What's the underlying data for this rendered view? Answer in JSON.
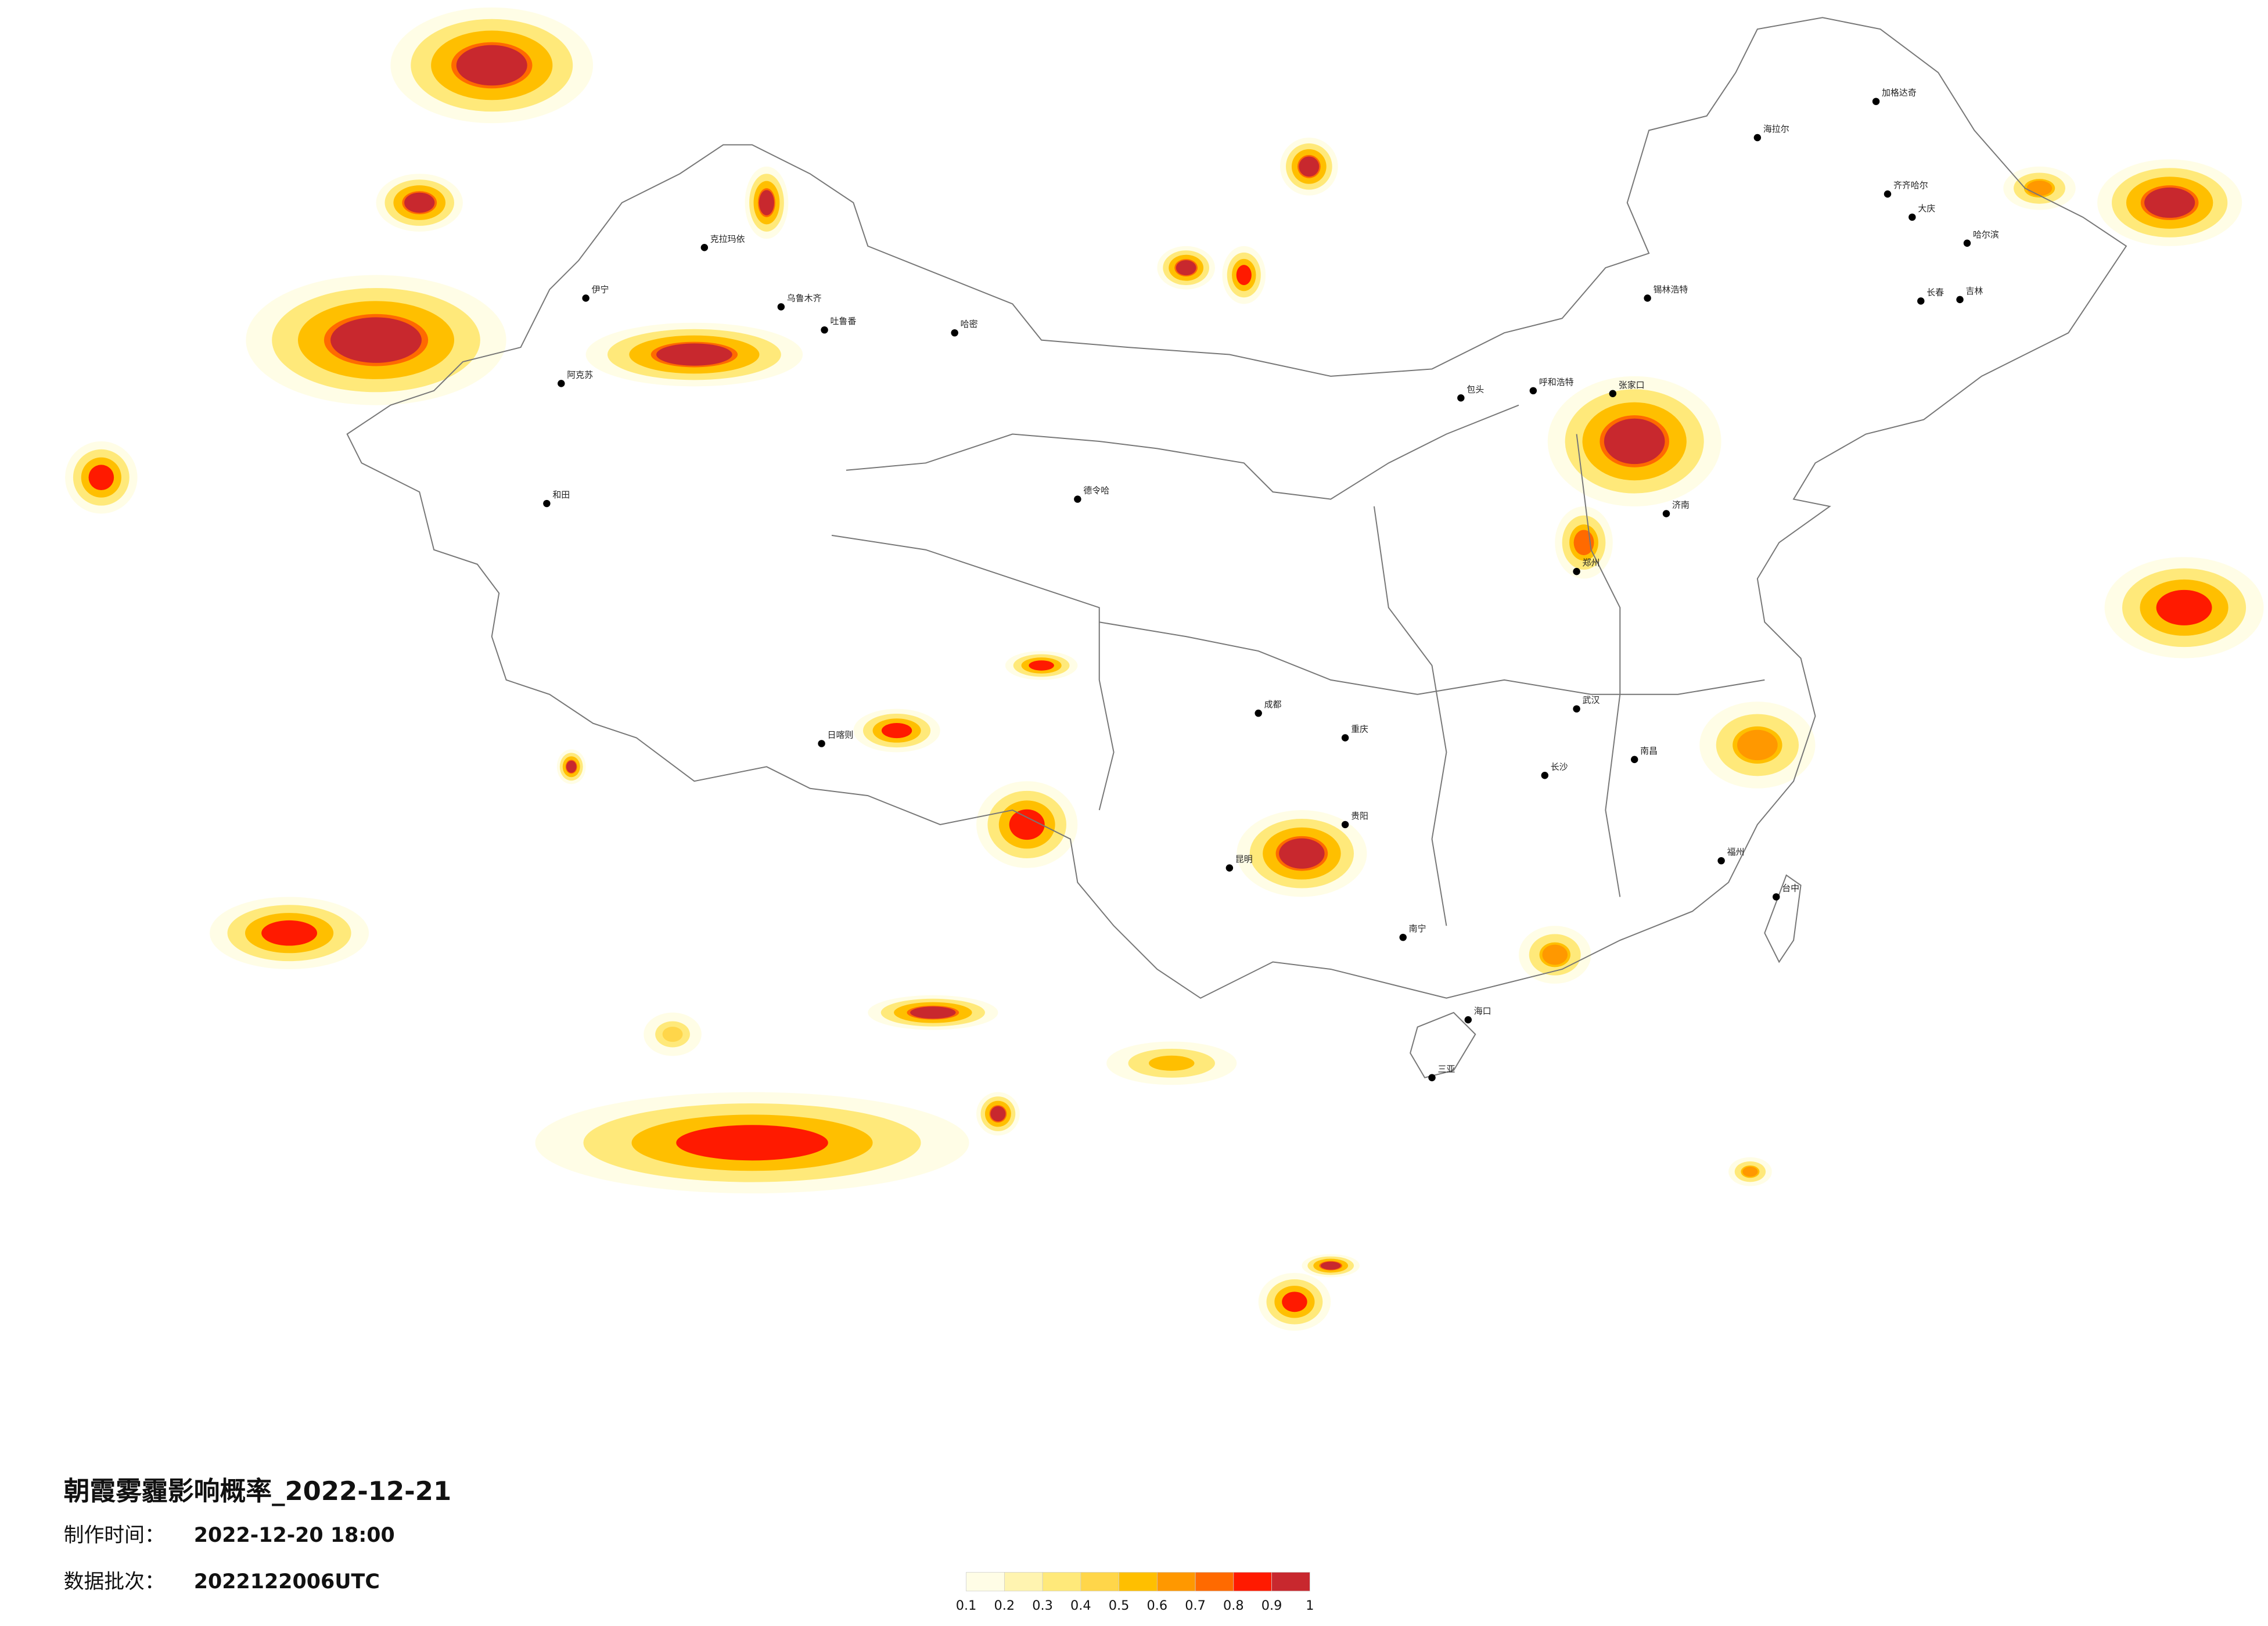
{
  "header": {
    "title": "朝霞雾霾影响概率_2022-12-21",
    "made_label": "制作时间：",
    "made_time": "2022-12-20 18:00",
    "batch_label": "数据批次：",
    "batch": "2022122006UTC"
  },
  "legend": {
    "ticks": [
      0.1,
      0.2,
      0.3,
      0.4,
      0.5,
      0.6,
      0.7,
      0.8,
      0.9,
      1
    ],
    "colors": [
      "#fffde6",
      "#fff4b0",
      "#ffe97a",
      "#ffd64a",
      "#ffbf00",
      "#ff9800",
      "#ff6a00",
      "#ff1a00",
      "#c8282e"
    ]
  },
  "cities": [
    "克拉玛依",
    "乌鲁木齐",
    "伊宁",
    "阿克苏",
    "和田",
    "吐鲁番",
    "哈密",
    "德令哈",
    "日喀则",
    "海拉尔",
    "加格达奇",
    "齐齐哈尔",
    "大庆",
    "哈尔滨",
    "长春",
    "吉林",
    "锡林浩特",
    "呼和浩特",
    "包头",
    "张家口",
    "济南",
    "郑州",
    "成都",
    "重庆",
    "贵阳",
    "昆明",
    "南宁",
    "海口",
    "三亚",
    "长沙",
    "南昌",
    "福州",
    "台中",
    "武汉"
  ]
}
